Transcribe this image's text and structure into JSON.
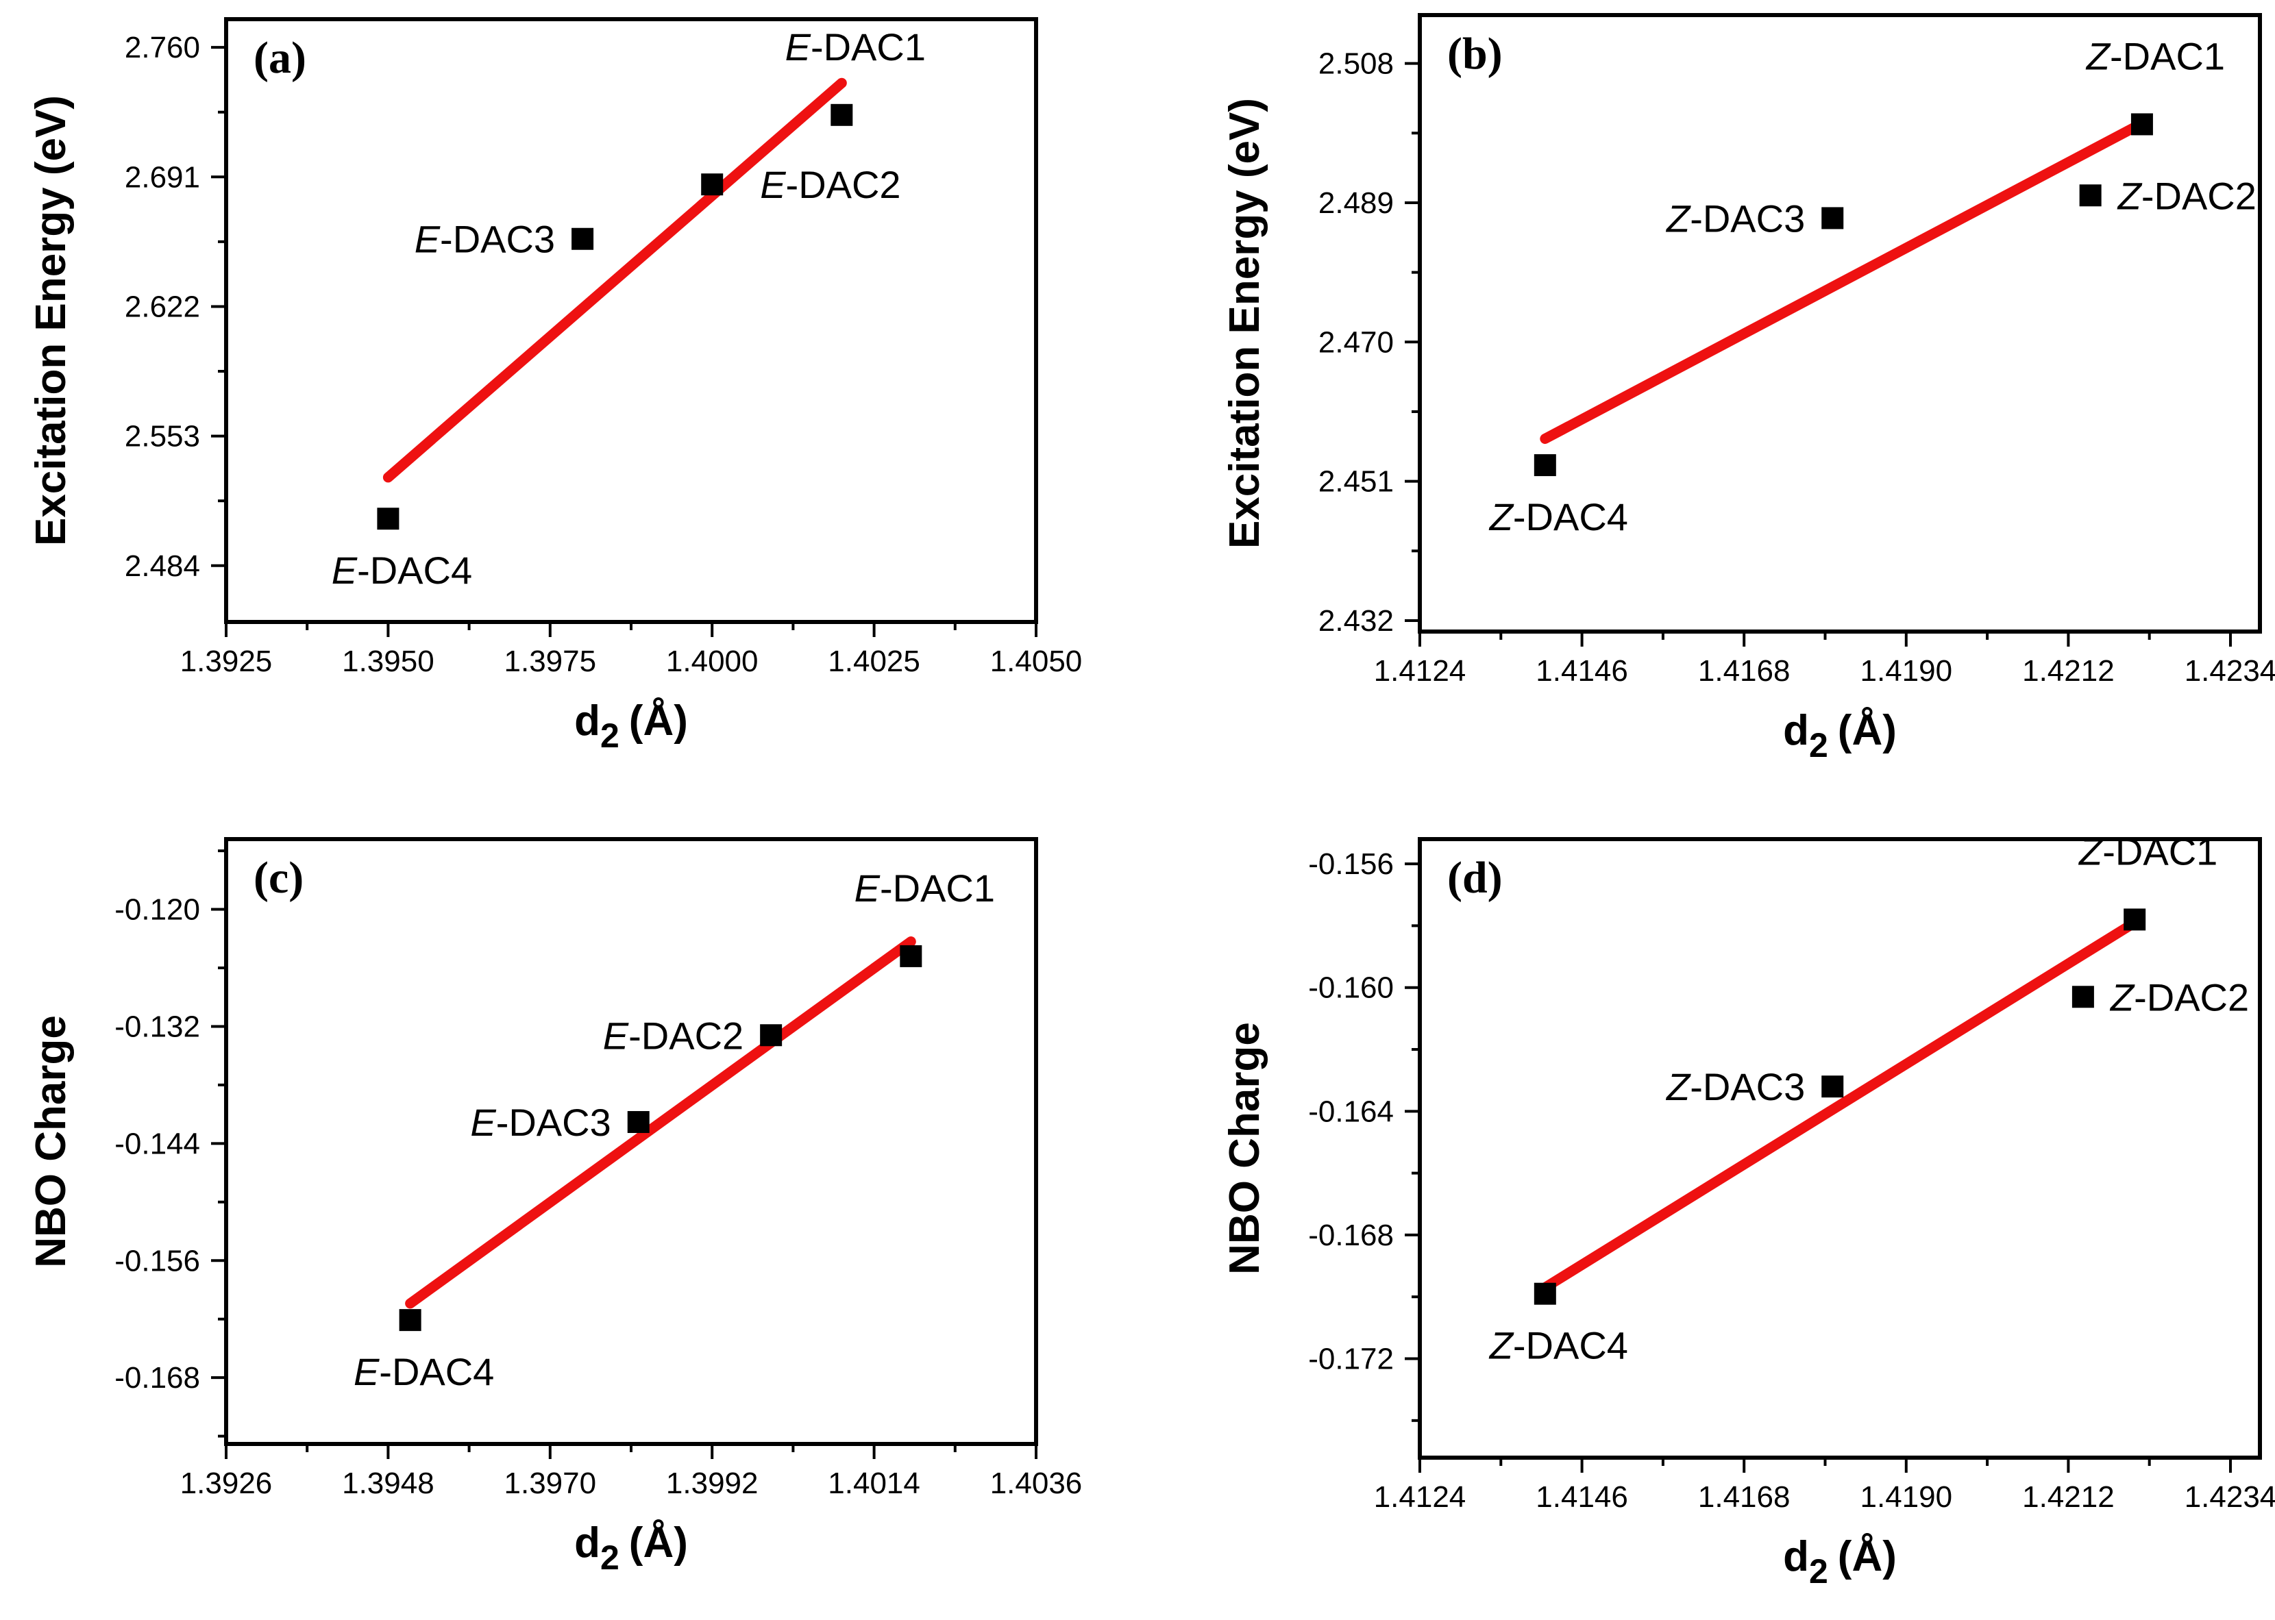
{
  "chart_data": [
    {
      "type": "scatter",
      "panel": "(a)",
      "xlabel": {
        "main": "d",
        "sub": "2",
        "unit": "(Å)"
      },
      "ylabel": "Excitation Energy (eV)",
      "xlim": [
        1.3925,
        1.405
      ],
      "ylim": [
        2.454,
        2.775
      ],
      "xticks": [
        1.3925,
        1.395,
        1.3975,
        1.4,
        1.4025,
        1.405
      ],
      "xtick_labels": [
        "1.3925",
        "1.3950",
        "1.3975",
        "1.4000",
        "1.4025",
        "1.4050"
      ],
      "yticks": [
        2.484,
        2.553,
        2.622,
        2.691,
        2.76
      ],
      "ytick_labels": [
        "2.484",
        "2.553",
        "2.622",
        "2.691",
        "2.760"
      ],
      "points": [
        {
          "prefix": "E",
          "suffix": "-DAC1",
          "x": 1.402,
          "y": 2.724,
          "label_pos": "above"
        },
        {
          "prefix": "E",
          "suffix": "-DAC2",
          "x": 1.4,
          "y": 2.687,
          "label_pos": "right-below"
        },
        {
          "prefix": "E",
          "suffix": "-DAC3",
          "x": 1.398,
          "y": 2.658,
          "label_pos": "left"
        },
        {
          "prefix": "E",
          "suffix": "-DAC4",
          "x": 1.395,
          "y": 2.509,
          "label_pos": "below"
        }
      ],
      "fit_line": {
        "x": [
          1.395,
          1.402
        ],
        "y": [
          2.531,
          2.741
        ]
      }
    },
    {
      "type": "scatter",
      "panel": "(b)",
      "xlabel": {
        "main": "d",
        "sub": "2",
        "unit": "(Å)"
      },
      "ylabel": "Excitation Energy (eV)",
      "xlim": [
        1.4124,
        1.4238
      ],
      "ylim": [
        2.4305,
        2.5146
      ],
      "xticks": [
        1.4124,
        1.4146,
        1.4168,
        1.419,
        1.4212,
        1.4234
      ],
      "xtick_labels": [
        "1.4124",
        "1.4146",
        "1.4168",
        "1.4190",
        "1.4212",
        "1.4234"
      ],
      "yticks": [
        2.432,
        2.451,
        2.47,
        2.489,
        2.508
      ],
      "ytick_labels": [
        "2.432",
        "2.451",
        "2.470",
        "2.489",
        "2.508"
      ],
      "points": [
        {
          "prefix": "Z",
          "suffix": "-DAC1",
          "x": 1.4222,
          "y": 2.4997,
          "label_pos": "above"
        },
        {
          "prefix": "Z",
          "suffix": "-DAC2",
          "x": 1.4215,
          "y": 2.49,
          "label_pos": "right"
        },
        {
          "prefix": "Z",
          "suffix": "-DAC3",
          "x": 1.418,
          "y": 2.4869,
          "label_pos": "left"
        },
        {
          "prefix": "Z",
          "suffix": "-DAC4",
          "x": 1.4141,
          "y": 2.4532,
          "label_pos": "below"
        }
      ],
      "fit_line": {
        "x": [
          1.4141,
          1.4221
        ],
        "y": [
          2.4568,
          2.4993
        ]
      }
    },
    {
      "type": "scatter",
      "panel": "(c)",
      "xlabel": {
        "main": "d",
        "sub": "2",
        "unit": "(Å)"
      },
      "ylabel": "NBO Charge",
      "xlim": [
        1.3926,
        1.4036
      ],
      "ylim": [
        -0.1748,
        -0.1128
      ],
      "xticks": [
        1.3926,
        1.3948,
        1.397,
        1.3992,
        1.4014,
        1.4036
      ],
      "xtick_labels": [
        "1.3926",
        "1.3948",
        "1.3970",
        "1.3992",
        "1.4014",
        "1.4036"
      ],
      "yticks": [
        -0.12,
        -0.132,
        -0.144,
        -0.156,
        -0.168
      ],
      "ytick_labels": [
        "-0.120",
        "-0.132",
        "-0.144",
        "-0.156",
        "-0.168"
      ],
      "points": [
        {
          "prefix": "E",
          "suffix": "-DAC1",
          "x": 1.4019,
          "y": -0.1248,
          "label_pos": "above"
        },
        {
          "prefix": "E",
          "suffix": "-DAC2",
          "x": 1.4,
          "y": -0.1329,
          "label_pos": "left"
        },
        {
          "prefix": "E",
          "suffix": "-DAC3",
          "x": 1.3982,
          "y": -0.1418,
          "label_pos": "left"
        },
        {
          "prefix": "E",
          "suffix": "-DAC4",
          "x": 1.3951,
          "y": -0.1621,
          "label_pos": "below"
        }
      ],
      "fit_line": {
        "x": [
          1.3951,
          1.4019
        ],
        "y": [
          -0.1604,
          -0.1233
        ]
      }
    },
    {
      "type": "scatter",
      "panel": "(d)",
      "xlabel": {
        "main": "d",
        "sub": "2",
        "unit": "(Å)"
      },
      "ylabel": "NBO Charge",
      "xlim": [
        1.4124,
        1.4238
      ],
      "ylim": [
        -0.1752,
        -0.1552
      ],
      "xticks": [
        1.4124,
        1.4146,
        1.4168,
        1.419,
        1.4212,
        1.4234
      ],
      "xtick_labels": [
        "1.4124",
        "1.4146",
        "1.4168",
        "1.4190",
        "1.4212",
        "1.4234"
      ],
      "yticks": [
        -0.156,
        -0.16,
        -0.164,
        -0.168,
        -0.172
      ],
      "ytick_labels": [
        "-0.156",
        "-0.160",
        "-0.164",
        "-0.168",
        "-0.172"
      ],
      "points": [
        {
          "prefix": "Z",
          "suffix": "-DAC1",
          "x": 1.4221,
          "y": -0.1578,
          "label_pos": "above"
        },
        {
          "prefix": "Z",
          "suffix": "-DAC2",
          "x": 1.4214,
          "y": -0.1603,
          "label_pos": "right"
        },
        {
          "prefix": "Z",
          "suffix": "-DAC3",
          "x": 1.418,
          "y": -0.1632,
          "label_pos": "left"
        },
        {
          "prefix": "Z",
          "suffix": "-DAC4",
          "x": 1.4141,
          "y": -0.1699,
          "label_pos": "below"
        }
      ],
      "fit_line": {
        "x": [
          1.4141,
          1.4221
        ],
        "y": [
          -0.1697,
          -0.1579
        ]
      }
    }
  ],
  "colors": {
    "fit": "#ee1111",
    "marker": "#000000",
    "axis": "#000000"
  }
}
